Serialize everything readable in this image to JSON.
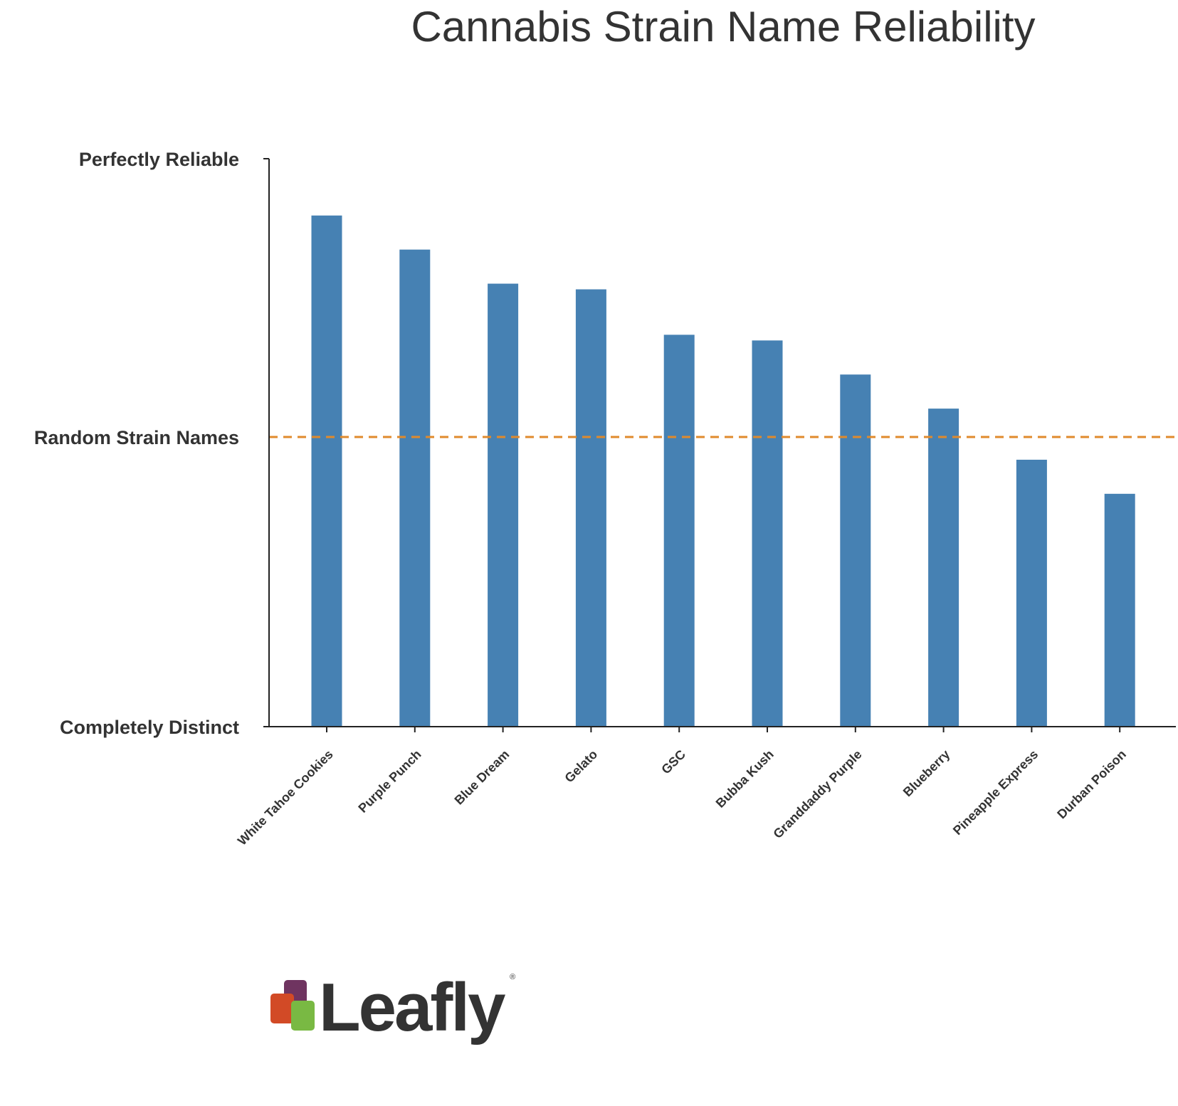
{
  "chart_data": {
    "type": "bar",
    "title": "Cannabis Strain Name Reliability",
    "xlabel": "",
    "ylabel": "",
    "categories": [
      "White Tahoe Cookies",
      "Purple Punch",
      "Blue Dream",
      "Gelato",
      "GSC",
      "Bubba Kush",
      "Granddaddy Purple",
      "Blueberry",
      "Pineapple Express",
      "Durban Poison"
    ],
    "values": [
      0.9,
      0.84,
      0.78,
      0.77,
      0.69,
      0.68,
      0.62,
      0.56,
      0.47,
      0.41
    ],
    "ylim": [
      0,
      1
    ],
    "yticks": [
      {
        "value": 1,
        "label": "Perfectly Reliable"
      },
      {
        "value": 0.51,
        "label": "Random Strain Names"
      },
      {
        "value": 0,
        "label": "Completely Distinct"
      }
    ],
    "reference_line": {
      "value": 0.51,
      "style": "dashed",
      "color": "#e08a2c"
    },
    "bar_color": "#4681b3",
    "grid": false,
    "legend": "none"
  },
  "logo": {
    "text": "Leafly",
    "mark": "®",
    "colors": [
      "#6f3460",
      "#d24a26",
      "#79b943"
    ]
  }
}
